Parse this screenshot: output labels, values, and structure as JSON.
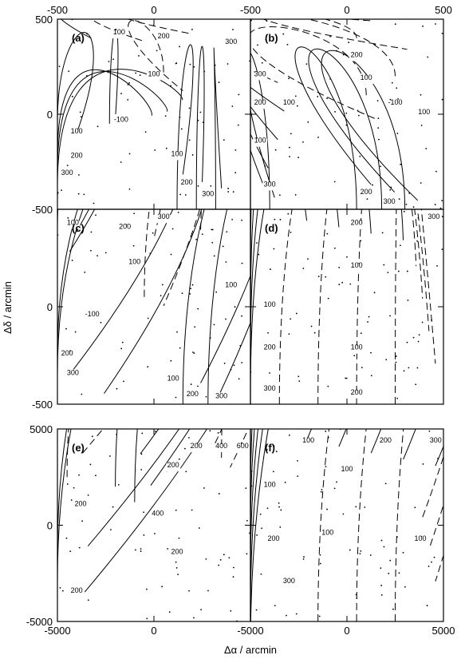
{
  "x_label": "Δα / arcmin",
  "y_label": "Δδ / arcmin",
  "chart_data": [
    {
      "type": "contour",
      "label": "(a)",
      "xlim": [
        -500,
        500
      ],
      "ylim": [
        -500,
        500
      ],
      "xticks": [
        -500,
        0,
        500
      ],
      "yticks": [
        -500,
        0,
        500
      ],
      "contour_labels": [
        100,
        200,
        300,
        -100,
        100,
        100,
        200,
        300,
        100,
        200,
        300
      ]
    },
    {
      "type": "contour",
      "label": "(b)",
      "xlim": [
        -500,
        500
      ],
      "ylim": [
        -500,
        500
      ],
      "xticks": [
        -500,
        0,
        500
      ],
      "yticks": [
        -500,
        0,
        500
      ],
      "contour_labels": [
        300,
        200,
        100,
        200,
        100,
        -100,
        100,
        100,
        300,
        200,
        300
      ]
    },
    {
      "type": "contour",
      "label": "(c)",
      "xlim": [
        -500,
        500
      ],
      "ylim": [
        -500,
        500
      ],
      "xticks": [
        -500,
        0,
        500
      ],
      "yticks": [
        -500,
        0,
        500
      ],
      "contour_labels": [
        100,
        300,
        200,
        100,
        -100,
        100,
        200,
        300,
        100,
        200,
        300
      ]
    },
    {
      "type": "contour",
      "label": "(d)",
      "xlim": [
        -500,
        500
      ],
      "ylim": [
        -500,
        500
      ],
      "xticks": [
        -500,
        0,
        500
      ],
      "yticks": [
        -500,
        0,
        500
      ],
      "contour_labels": [
        200,
        300,
        100,
        100,
        200,
        100,
        300,
        200
      ]
    },
    {
      "type": "contour",
      "label": "(e)",
      "xlim": [
        -5000,
        5000
      ],
      "ylim": [
        -5000,
        5000
      ],
      "xticks": [
        -5000,
        0,
        5000
      ],
      "yticks": [
        -5000,
        0,
        5000
      ],
      "contour_labels": [
        200,
        400,
        600,
        200,
        200,
        400,
        200,
        200
      ]
    },
    {
      "type": "contour",
      "label": "(f)",
      "xlim": [
        -5000,
        5000
      ],
      "ylim": [
        -5000,
        5000
      ],
      "xticks": [
        -5000,
        0,
        5000
      ],
      "yticks": [
        -5000,
        0,
        5000
      ],
      "contour_labels": [
        100,
        200,
        300,
        100,
        100,
        200,
        100,
        100,
        300
      ]
    }
  ]
}
